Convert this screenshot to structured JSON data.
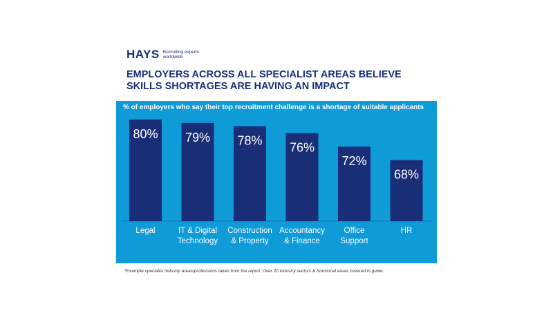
{
  "brand": {
    "name": "HAYS",
    "tagline_line1": "Recruiting experts",
    "tagline_line2": "worldwide"
  },
  "headline": {
    "line1": "EMPLOYERS ACROSS ALL SPECIALIST AREAS BELIEVE",
    "line2": "SKILLS SHORTAGES ARE HAVING AN IMPACT"
  },
  "footnote": "*Example specialist industry areas/professions taken from the report.  Over 20 industry sectors & functional areas covered in guide.",
  "colors": {
    "panel": "#0f9ad8",
    "bar": "#1a2e78",
    "text_on_panel": "#ffffff"
  },
  "chart_data": {
    "type": "bar",
    "title": "% of employers who say their top recruitment challenge is a shortage of suitable applicants",
    "categories": [
      [
        "Legal"
      ],
      [
        "IT & Digital",
        "Technology"
      ],
      [
        "Construction",
        "& Property"
      ],
      [
        "Accountancy",
        "& Finance"
      ],
      [
        "Office",
        "Support"
      ],
      [
        "HR"
      ]
    ],
    "values": [
      80,
      79,
      78,
      76,
      72,
      68
    ],
    "value_labels": [
      "80%",
      "79%",
      "78%",
      "76%",
      "72%",
      "68%"
    ],
    "unit": "%",
    "ylim": [
      50,
      81
    ],
    "grid": false,
    "legend": "none"
  }
}
